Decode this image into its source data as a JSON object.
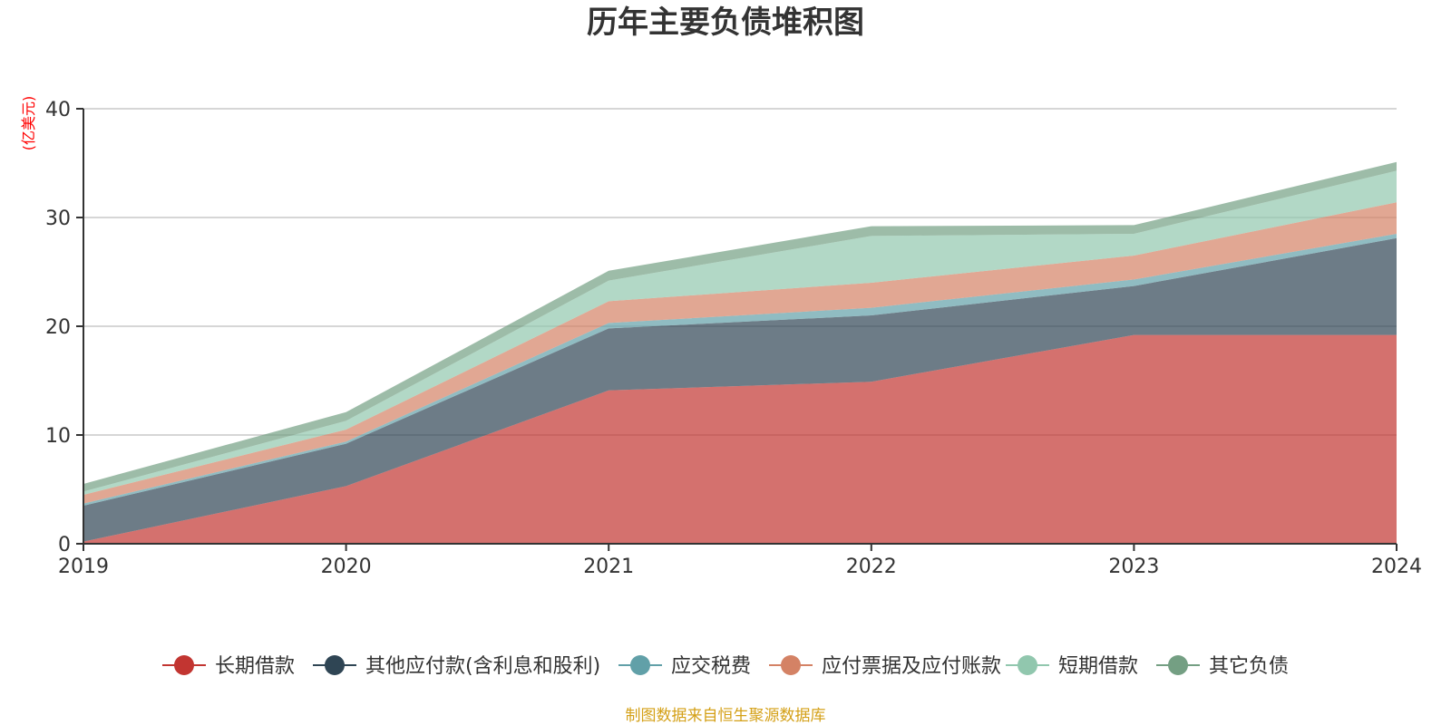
{
  "chart_data": {
    "type": "area",
    "stacked": true,
    "title": "历年主要负债堆积图",
    "ylabel": "(亿美元)",
    "xlabel": "",
    "ylim": [
      0,
      40
    ],
    "y_ticks": [
      "0",
      "10",
      "20",
      "30",
      "40"
    ],
    "categories": [
      "2019",
      "2020",
      "2021",
      "2022",
      "2023",
      "2024"
    ],
    "grid": true,
    "legend_position": "bottom",
    "series": [
      {
        "name": "长期借款",
        "color": "#c23531",
        "values": [
          0.2,
          5.3,
          14.1,
          14.9,
          19.2,
          19.2
        ]
      },
      {
        "name": "其他应付款(含利息和股利)",
        "color": "#2f4554",
        "values": [
          3.3,
          3.9,
          5.7,
          6.1,
          4.5,
          8.9
        ]
      },
      {
        "name": "应交税费",
        "color": "#61a0a8",
        "values": [
          0.2,
          0.2,
          0.5,
          0.7,
          0.6,
          0.4
        ]
      },
      {
        "name": "应付票据及应付账款",
        "color": "#d48265",
        "values": [
          0.8,
          1.1,
          2.0,
          2.3,
          2.2,
          2.9
        ]
      },
      {
        "name": "短期借款",
        "color": "#91c7ae",
        "values": [
          0.3,
          0.8,
          1.9,
          4.3,
          2.0,
          2.9
        ]
      },
      {
        "name": "其它负债",
        "color": "#749f83",
        "values": [
          0.7,
          0.8,
          0.9,
          0.9,
          0.8,
          0.8
        ]
      }
    ],
    "source": "制图数据来自恒生聚源数据库",
    "unit_color": "#ff0000",
    "source_color": "#d4a017"
  }
}
